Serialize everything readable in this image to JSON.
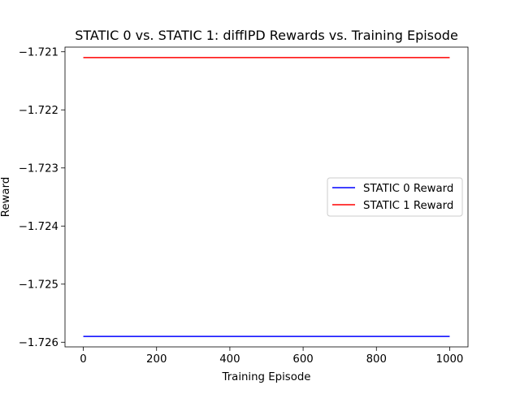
{
  "chart_data": {
    "type": "line",
    "title": "STATIC 0 vs. STATIC 1: diffIPD Rewards vs. Training Episode",
    "xlabel": "Training Episode",
    "ylabel": "Reward",
    "xlim": [
      -50,
      1050
    ],
    "ylim": [
      -1.72608,
      -1.72092
    ],
    "x_ticks": [
      0,
      200,
      400,
      600,
      800,
      1000
    ],
    "x_tick_labels": [
      "0",
      "200",
      "400",
      "600",
      "800",
      "1000"
    ],
    "y_ticks": [
      -1.721,
      -1.722,
      -1.723,
      -1.724,
      -1.725,
      -1.726
    ],
    "y_tick_labels": [
      "−1.721",
      "−1.722",
      "−1.723",
      "−1.724",
      "−1.725",
      "−1.726"
    ],
    "grid": false,
    "legend_position": "center-right",
    "series": [
      {
        "name": "STATIC 0 Reward",
        "color": "#0000ff",
        "x": [
          0,
          1000
        ],
        "y": [
          -1.7259,
          -1.7259
        ]
      },
      {
        "name": "STATIC 1 Reward",
        "color": "#ff0000",
        "x": [
          0,
          1000
        ],
        "y": [
          -1.7211,
          -1.7211
        ]
      }
    ]
  }
}
